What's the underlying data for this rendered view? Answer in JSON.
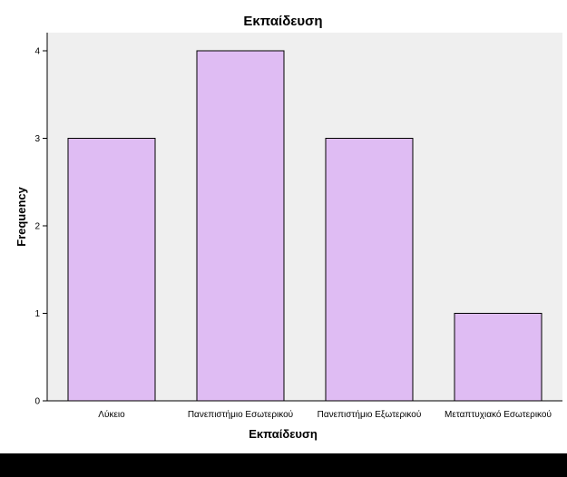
{
  "chart_data": {
    "type": "bar",
    "title": "Εκπαίδευση",
    "xlabel": "Εκπαίδευση",
    "ylabel": "Frequency",
    "categories": [
      "Λύκειο",
      "Πανεπιστήμιο Εσωτερικού",
      "Πανεπιστήμιο Εξωτερικού",
      "Μεταπτυχιακό Εσωτερικού"
    ],
    "values": [
      3,
      4,
      3,
      1
    ],
    "ylim": [
      0,
      4
    ],
    "yticks": [
      0,
      1,
      2,
      3,
      4
    ],
    "grid": false,
    "legend": "none"
  },
  "colors": {
    "bar_fill": "#dfbcf3",
    "bar_stroke": "#000000",
    "plot_background": "#efefef",
    "footer_band": "#000000"
  }
}
